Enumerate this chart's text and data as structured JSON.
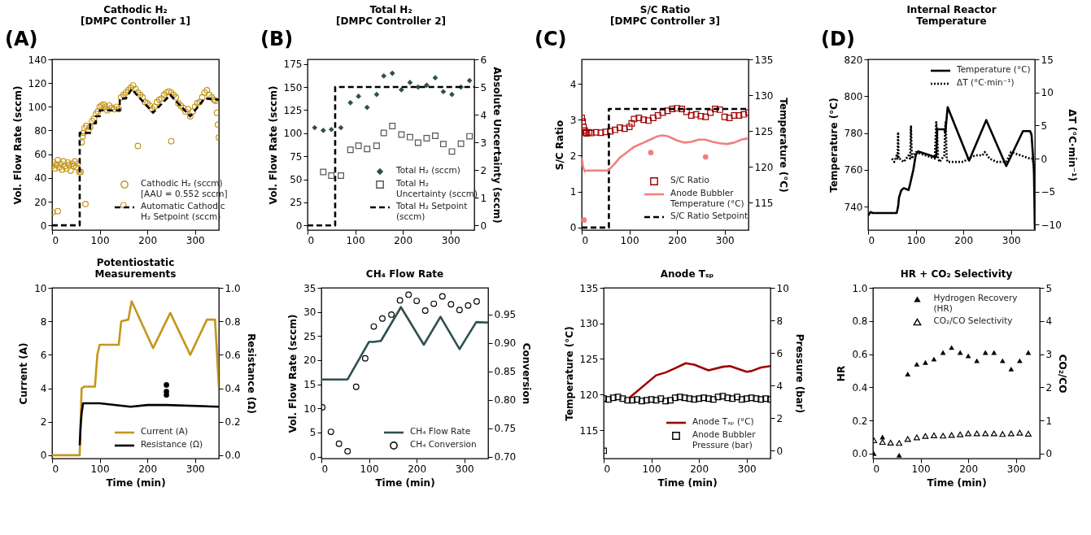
{
  "chart_data": [
    {
      "type": "scatter",
      "title": "Cathodic H₂\n[DMPC Controller 1]",
      "ylabel": "Vol. Flow Rate (sccm)",
      "annotations": [
        "(A)"
      ],
      "xlim": [
        0,
        350
      ],
      "xticks": [
        0,
        100,
        200,
        300
      ],
      "ylim": [
        -4,
        140
      ],
      "yticks": [
        0,
        20,
        40,
        60,
        80,
        100,
        120,
        140
      ],
      "legend": "bottom right",
      "series": [
        {
          "name": "Cathodic H₂ (sccm) [AAU = 0.552 sccm]",
          "marker": "circle",
          "color": "#c4961a",
          "x": [
            0,
            3,
            6,
            9,
            12,
            15,
            18,
            21,
            24,
            27,
            30,
            33,
            36,
            39,
            42,
            45,
            48,
            51,
            54,
            57,
            1,
            12,
            70,
            150,
            180,
            250,
            60,
            62,
            64,
            66,
            68,
            72,
            76,
            80,
            84,
            88,
            92,
            96,
            100,
            104,
            108,
            112,
            116,
            120,
            125,
            130,
            135,
            140,
            145,
            150,
            155,
            160,
            165,
            170,
            175,
            180,
            185,
            190,
            195,
            200,
            205,
            210,
            215,
            220,
            225,
            230,
            235,
            240,
            245,
            250,
            255,
            260,
            265,
            270,
            275,
            280,
            285,
            290,
            295,
            300,
            305,
            310,
            315,
            320,
            325,
            330,
            335,
            340,
            343,
            346,
            348,
            350
          ],
          "values": [
            50,
            53,
            48,
            51,
            55,
            49,
            52,
            47,
            54,
            50,
            48,
            53,
            51,
            46,
            52,
            50,
            54,
            49,
            52,
            45,
            11,
            12,
            18,
            17,
            67,
            71,
            45,
            70,
            75,
            78,
            82,
            84,
            80,
            83,
            88,
            90,
            94,
            96,
            100,
            101,
            102,
            100,
            97,
            101,
            99,
            98,
            100,
            98,
            108,
            110,
            112,
            114,
            116,
            118,
            115,
            112,
            110,
            108,
            104,
            103,
            101,
            98,
            100,
            104,
            106,
            107,
            110,
            112,
            113,
            112,
            110,
            108,
            103,
            101,
            99,
            96,
            98,
            92,
            96,
            100,
            103,
            104,
            108,
            112,
            114,
            110,
            108,
            106,
            105,
            95,
            85,
            74
          ]
        },
        {
          "name": "Automatic Cathodic H₂ Setpoint (sccm)",
          "type": "line",
          "line_style": "dashed",
          "color": "#000000",
          "x": [
            0,
            58,
            58,
            80,
            80,
            92,
            92,
            100,
            100,
            142,
            142,
            155,
            167,
            212,
            248,
            290,
            320,
            350
          ],
          "values": [
            0,
            0,
            78,
            78,
            86,
            86,
            92,
            92,
            97,
            97,
            107,
            107,
            115,
            95,
            110,
            92,
            107,
            106
          ]
        }
      ]
    },
    {
      "type": "scatter",
      "title": "Total H₂\n[DMPC Controller 2]",
      "ylabel": "Vol. Flow Rate (sccm)",
      "y2label": "Absolute Uncertainty (sccm)",
      "annotations": [
        "(B)"
      ],
      "xlim": [
        0,
        350
      ],
      "xticks": [
        0,
        100,
        200,
        300
      ],
      "ylim": [
        -5,
        180
      ],
      "yticks": [
        0,
        25,
        50,
        75,
        100,
        125,
        150,
        175
      ],
      "y2lim": [
        -0.17,
        6
      ],
      "y2ticks": [
        0,
        1,
        2,
        3,
        4,
        5,
        6
      ],
      "legend": "bottom right",
      "series": [
        {
          "name": "Total H₂ (sccm)",
          "marker": "diamond",
          "color": "#2f4f4f",
          "x": [
            15,
            33,
            50,
            70,
            90,
            107,
            125,
            145,
            160,
            178,
            197,
            215,
            232,
            250,
            268,
            285,
            303,
            322,
            340
          ],
          "values": [
            106,
            103,
            104,
            106,
            133,
            140,
            128,
            142,
            162,
            165,
            147,
            155,
            150,
            152,
            160,
            145,
            142,
            150,
            157
          ]
        },
        {
          "name": "Total H₂ Uncertainty (sccm)",
          "marker": "square",
          "axis": "y2",
          "color": "#555555",
          "x": [
            33,
            50,
            70,
            90,
            107,
            125,
            145,
            160,
            178,
            197,
            215,
            232,
            250,
            268,
            285,
            303,
            322,
            340
          ],
          "values": [
            1.93,
            1.8,
            1.8,
            2.73,
            2.88,
            2.76,
            2.88,
            3.34,
            3.59,
            3.28,
            3.19,
            2.99,
            3.15,
            3.24,
            2.94,
            2.67,
            2.95,
            3.22
          ]
        },
        {
          "name": "Total H₂ Setpoint (sccm)",
          "type": "line",
          "line_style": "dashed",
          "color": "#000000",
          "x": [
            0,
            58,
            58,
            350
          ],
          "values": [
            0,
            0,
            150,
            150
          ]
        }
      ]
    },
    {
      "type": "scatter",
      "title": "S/C Ratio\n[DMPC Controller 3]",
      "ylabel": "S/C Ratio",
      "y2label": "Temperature (°C)",
      "annotations": [
        "(C)"
      ],
      "xlim": [
        0,
        350
      ],
      "xticks": [
        0,
        100,
        200,
        300
      ],
      "ylim": [
        -0.07,
        4.68
      ],
      "yticks": [
        0,
        1,
        2,
        3,
        4
      ],
      "y2lim": [
        111.2,
        135
      ],
      "y2ticks": [
        115,
        120,
        125,
        130,
        135
      ],
      "legend": "bottom right",
      "series": [
        {
          "name": "S/C Ratio",
          "marker": "square",
          "color": "#a00000",
          "x": [
            0,
            2,
            4,
            6,
            8,
            10,
            15,
            20,
            30,
            40,
            50,
            60,
            70,
            80,
            90,
            100,
            105,
            110,
            120,
            130,
            140,
            150,
            160,
            170,
            180,
            190,
            200,
            210,
            220,
            230,
            240,
            250,
            260,
            270,
            280,
            290,
            300,
            310,
            320,
            330,
            340,
            350
          ],
          "values": [
            3.05,
            2.95,
            2.8,
            2.7,
            2.65,
            2.62,
            2.65,
            2.63,
            2.65,
            2.64,
            2.66,
            2.68,
            2.72,
            2.78,
            2.75,
            2.8,
            2.9,
            3.02,
            3.05,
            3.0,
            2.98,
            3.05,
            3.12,
            3.2,
            3.25,
            3.3,
            3.32,
            3.3,
            3.22,
            3.12,
            3.15,
            3.1,
            3.08,
            3.2,
            3.3,
            3.28,
            3.08,
            3.05,
            3.12,
            3.12,
            3.15,
            3.2
          ]
        },
        {
          "name": "Anode Bubbler Temperature (°C)",
          "type": "line",
          "line_style": "solid",
          "axis": "y2",
          "color": "#f08080",
          "x": [
            0,
            3,
            6,
            10,
            20,
            40,
            55,
            60,
            70,
            80,
            90,
            100,
            110,
            120,
            130,
            140,
            150,
            160,
            170,
            180,
            190,
            200,
            215,
            230,
            245,
            260,
            275,
            290,
            305,
            320,
            335,
            350
          ],
          "values": [
            121.3,
            120.0,
            119.4,
            119.5,
            119.5,
            119.5,
            119.5,
            119.8,
            120.5,
            121.3,
            121.8,
            122.3,
            122.8,
            123.1,
            123.4,
            123.7,
            124.0,
            124.3,
            124.4,
            124.3,
            124.0,
            123.7,
            123.4,
            123.5,
            123.8,
            123.8,
            123.5,
            123.3,
            123.2,
            123.4,
            123.8,
            124.0
          ]
        },
        {
          "marker": "circle",
          "axis": "y2",
          "color": "#f08080",
          "x": [
            5,
            145,
            260
          ],
          "values": [
            112.6,
            122.0,
            121.4
          ]
        },
        {
          "name": "S/C Ratio Setpoint",
          "type": "line",
          "line_style": "dashed",
          "color": "#000000",
          "x": [
            0,
            57,
            57,
            350
          ],
          "values": [
            0,
            0,
            3.3,
            3.3
          ]
        }
      ]
    },
    {
      "type": "line",
      "title": "Internal Reactor\nTemperature",
      "ylabel": "Temperature (°C)",
      "y2label": "ΔT (°C·min⁻¹)",
      "annotations": [
        "(D)"
      ],
      "xlim": [
        0,
        350
      ],
      "xticks": [
        0,
        100,
        200,
        300
      ],
      "ylim": [
        727.2,
        820
      ],
      "yticks": [
        740,
        760,
        780,
        800,
        820
      ],
      "y2lim": [
        -10.8,
        15
      ],
      "y2ticks": [
        -10,
        -5,
        0,
        5,
        10,
        15
      ],
      "legend": "top right",
      "series": [
        {
          "name": "Temperature (°C)",
          "line_style": "solid",
          "color": "#000000",
          "x": [
            0,
            5,
            10,
            60,
            63,
            65,
            70,
            75,
            85,
            88,
            95,
            100,
            105,
            140,
            143,
            145,
            150,
            160,
            162,
            167,
            212,
            248,
            290,
            325,
            340,
            343,
            348,
            350
          ],
          "values": [
            735,
            737,
            736.5,
            736.5,
            740,
            745,
            749,
            750,
            749,
            752,
            760,
            768,
            770,
            767,
            767,
            782,
            782,
            782,
            780,
            794,
            765,
            787,
            762,
            781,
            781,
            779,
            760,
            727.5
          ]
        },
        {
          "name": "ΔT (°C·min⁻¹)",
          "line_style": "dotted",
          "axis": "y2",
          "color": "#000000",
          "x": [
            50,
            55,
            60,
            62,
            63,
            64,
            66,
            75,
            85,
            88,
            90,
            92,
            95,
            100,
            120,
            140,
            143,
            145,
            147,
            150,
            160,
            162,
            163,
            165,
            167,
            180,
            200,
            210,
            225,
            240,
            245,
            250,
            255,
            270,
            290,
            300,
            320,
            340,
            345,
            348,
            350
          ],
          "values": [
            0,
            -0.5,
            0.5,
            0,
            4,
            0,
            0,
            -0.5,
            0.5,
            0,
            5,
            0,
            0.5,
            1,
            0.5,
            0,
            5.5,
            4,
            0,
            -0.5,
            0.5,
            5,
            5.5,
            0,
            -0.5,
            -0.5,
            -0.5,
            0,
            0.5,
            0.5,
            1,
            0.5,
            0,
            -0.5,
            -0.5,
            1,
            0.5,
            0,
            0,
            -1,
            -5
          ]
        }
      ]
    },
    {
      "type": "line",
      "title": "Potentiostatic\nMeasurements",
      "xlabel": "Time (min)",
      "ylabel": "Current (A)",
      "y2label": "Resistance (Ω)",
      "xlim": [
        0,
        350
      ],
      "xticks": [
        0,
        100,
        200,
        300
      ],
      "ylim": [
        -0.2,
        10
      ],
      "yticks": [
        0,
        2,
        4,
        6,
        8,
        10
      ],
      "y2lim": [
        -0.02,
        1.0
      ],
      "y2ticks": [
        {
          "value": 0,
          "label": "0.0"
        },
        0.2,
        0.4,
        0.6,
        0.8,
        {
          "value": 1,
          "label": "1.0"
        }
      ],
      "legend": "bottom right",
      "series": [
        {
          "name": "Current (A)",
          "line_style": "solid",
          "color": "#c4961a",
          "x": [
            0,
            58,
            62,
            68,
            90,
            95,
            100,
            105,
            140,
            145,
            160,
            167,
            212,
            248,
            290,
            325,
            342,
            350
          ],
          "values": [
            0,
            0,
            4,
            4.1,
            4.1,
            6,
            6.6,
            6.6,
            6.6,
            8,
            8.1,
            9.2,
            6.4,
            8.5,
            6,
            8.1,
            8.1,
            4.1
          ]
        },
        {
          "name": "Resistance (Ω)",
          "line_style": "solid",
          "axis": "y2",
          "color": "#000000",
          "x": [
            58,
            60,
            62,
            65,
            100,
            165,
            200,
            240,
            350
          ],
          "values": [
            0.06,
            0.18,
            0.25,
            0.31,
            0.31,
            0.29,
            0.3,
            0.3,
            0.29
          ]
        },
        {
          "type": "scatter",
          "marker": "circle",
          "axis": "y2",
          "color": "#000000",
          "x": [
            240,
            240,
            240
          ],
          "values": [
            0.42,
            0.38,
            0.36
          ]
        }
      ]
    },
    {
      "type": "line",
      "title": "CH₄ Flow Rate",
      "xlabel": "Time (min)",
      "ylabel": "Vol. Flow Rate (sccm)",
      "y2label": "Conversion",
      "xlim": [
        0,
        350
      ],
      "xticks": [
        0,
        100,
        200,
        300
      ],
      "ylim": [
        -0.4,
        35
      ],
      "yticks": [
        0,
        5,
        10,
        15,
        20,
        25,
        30,
        35
      ],
      "y2lim": [
        0.697,
        0.997
      ],
      "y2ticks": [
        {
          "value": 0.7,
          "label": "0.70"
        },
        0.75,
        {
          "value": 0.8,
          "label": "0.80"
        },
        0.85,
        {
          "value": 0.9,
          "label": "0.90"
        },
        0.95
      ],
      "legend": "bottom right",
      "series": [
        {
          "name": "CH₄ Flow Rate",
          "line_style": "solid",
          "color": "#2f4f4f",
          "x": [
            0,
            55,
            100,
            110,
            125,
            167,
            215,
            250,
            290,
            325,
            350
          ],
          "values": [
            16,
            16,
            23.8,
            23.8,
            24,
            31,
            23.2,
            29,
            22.3,
            27.9,
            27.8
          ]
        },
        {
          "name": "CH₄ Conversion",
          "type": "scatter",
          "marker": "circle",
          "axis": "y2",
          "color": "#000000",
          "x": [
            2,
            20,
            37,
            55,
            73,
            92,
            110,
            128,
            147,
            165,
            183,
            200,
            218,
            236,
            254,
            272,
            290,
            308,
            326
          ],
          "values": [
            0.787,
            0.744,
            0.723,
            0.71,
            0.823,
            0.873,
            0.929,
            0.943,
            0.95,
            0.975,
            0.985,
            0.974,
            0.957,
            0.969,
            0.982,
            0.968,
            0.958,
            0.966,
            0.973
          ]
        }
      ]
    },
    {
      "type": "line",
      "title": "Anode Tₛₚ",
      "xlabel": "Time (min)",
      "ylabel": "Temperature (°C)",
      "y2label": "Pressure (bar)",
      "xlim": [
        0,
        350
      ],
      "xticks": [
        0,
        100,
        200,
        300
      ],
      "ylim": [
        111,
        135
      ],
      "yticks": [
        115,
        120,
        125,
        130,
        135
      ],
      "y2lim": [
        -0.48,
        10
      ],
      "y2ticks": [
        0,
        2,
        4,
        6,
        8,
        10
      ],
      "legend": "bottom right",
      "series": [
        {
          "name": "Anode Tₛₚ (°C)",
          "line_style": "solid",
          "color": "#a00000",
          "x": [
            55,
            110,
            130,
            150,
            172,
            190,
            220,
            250,
            265,
            300,
            310,
            330,
            350
          ],
          "values": [
            119.6,
            122.7,
            123.1,
            123.7,
            124.4,
            124.2,
            123.4,
            123.9,
            124.0,
            123.2,
            123.3,
            123.8,
            124.0
          ]
        },
        {
          "name": "Anode Bubbler Pressure (bar)",
          "type": "scatter",
          "marker": "square",
          "axis": "y2",
          "color": "#000000",
          "x": [
            0,
            10,
            20,
            30,
            40,
            50,
            60,
            70,
            80,
            90,
            100,
            110,
            120,
            130,
            140,
            150,
            160,
            170,
            180,
            190,
            200,
            210,
            220,
            230,
            240,
            250,
            260,
            270,
            280,
            290,
            300,
            310,
            320,
            330,
            340,
            350,
            0
          ],
          "values": [
            3.2,
            3.15,
            3.25,
            3.3,
            3.2,
            3.1,
            3.1,
            3.15,
            3.05,
            3.1,
            3.15,
            3.1,
            3.2,
            3.05,
            3.1,
            3.25,
            3.3,
            3.25,
            3.2,
            3.15,
            3.2,
            3.25,
            3.2,
            3.15,
            3.3,
            3.35,
            3.25,
            3.2,
            3.3,
            3.15,
            3.2,
            3.25,
            3.2,
            3.15,
            3.2,
            3.15,
            0
          ]
        }
      ]
    },
    {
      "type": "scatter",
      "title": "HR + CO₂ Selectivity",
      "xlabel": "Time (min)",
      "ylabel": "HR",
      "y2label": "CO₂/CO",
      "xlim": [
        0,
        350
      ],
      "xticks": [
        0,
        100,
        200,
        300
      ],
      "ylim": [
        -0.03,
        1.0
      ],
      "yticks": [
        {
          "value": 0,
          "label": "0.0"
        },
        0.2,
        0.4,
        0.6,
        0.8,
        {
          "value": 1,
          "label": "1.0"
        }
      ],
      "y2lim": [
        -0.15,
        5
      ],
      "y2ticks": [
        0,
        1,
        2,
        3,
        4,
        5
      ],
      "legend": "top",
      "series": [
        {
          "name": "Hydrogen Recovery (HR)",
          "marker": "triangle",
          "color": "#000000",
          "x": [
            2,
            20,
            55,
            73,
            92,
            110,
            128,
            147,
            165,
            183,
            200,
            218,
            236,
            254,
            272,
            290,
            308,
            326
          ],
          "values": [
            0.0,
            0.1,
            -0.01,
            0.48,
            0.54,
            0.55,
            0.57,
            0.61,
            0.64,
            0.61,
            0.59,
            0.56,
            0.61,
            0.61,
            0.56,
            0.51,
            0.56,
            0.61
          ]
        },
        {
          "name": "CO₂/CO Selectivity",
          "marker": "triangle",
          "axis": "y2",
          "color": "#000000",
          "x": [
            2,
            20,
            37,
            55,
            73,
            92,
            110,
            128,
            147,
            165,
            183,
            200,
            218,
            236,
            254,
            272,
            290,
            308,
            326
          ],
          "values": [
            0.4,
            0.35,
            0.33,
            0.32,
            0.44,
            0.49,
            0.53,
            0.55,
            0.54,
            0.56,
            0.58,
            0.61,
            0.61,
            0.61,
            0.61,
            0.59,
            0.61,
            0.63,
            0.6
          ]
        }
      ]
    }
  ]
}
